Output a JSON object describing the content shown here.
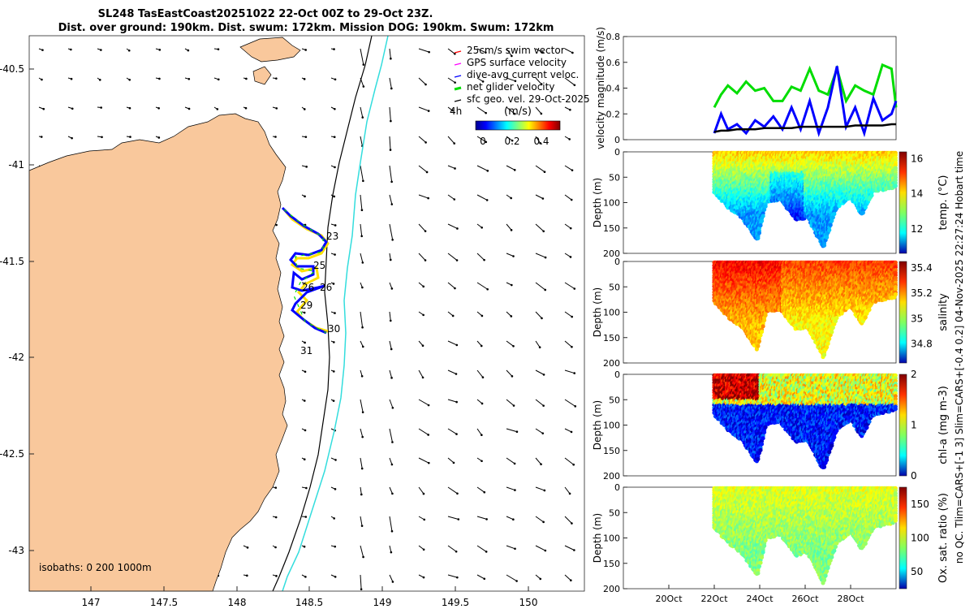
{
  "title": {
    "line1": "SL248 TasEastCoast20251022 22-Oct 00Z to 29-Oct 23Z.",
    "line2": "Dist. over ground: 190km. Dist. swum: 172km. Mission DOG: 190km. Swum: 172km"
  },
  "side_note": "no QC. Tlim=CARS+[-1 3] Slim=CARS+[-0.4 0.2] 04-Nov-2025 22:27:24 Hobart time",
  "colors": {
    "land": "#F9C89C",
    "coast": "#000000",
    "isobath_200": "#000000",
    "isobath_1000": "#33DDDD",
    "swim_vector": "#FF0000",
    "gps_velocity": "#FF00FF",
    "dive_avg": "#0000FF",
    "net_glider": "#00DD00",
    "sfc_geo": "#000000",
    "track_main": "#0000FF",
    "track_alt": "#FFE000"
  },
  "map": {
    "xticks": [
      "147",
      "147.5",
      "148",
      "148.5",
      "149",
      "149.5",
      "150"
    ],
    "yticks": [
      "-40.5",
      "-41",
      "-41.5",
      "-42",
      "-42.5",
      "-43"
    ],
    "isobaths_label": "isobaths: 0   200   1000m",
    "legend": [
      {
        "label": "25cm/s swim vector",
        "color": "#FF0000"
      },
      {
        "label": "GPS surface velocity",
        "color": "#FF00FF"
      },
      {
        "label": "dive-avg current veloc.",
        "color": "#0000FF"
      },
      {
        "label": "net glider velocity",
        "color": "#00DD00"
      },
      {
        "label": "sfc geo. vel. 29-Oct-2025",
        "color": "#000000"
      }
    ],
    "legend_4h": "4h",
    "colorbar": {
      "label": "(m/s)",
      "ticks": [
        "0",
        "0.2",
        "0.4"
      ]
    },
    "track_day_labels": [
      "23",
      "25",
      "26",
      "26",
      "29",
      "30",
      "31"
    ]
  },
  "chart_data": [
    {
      "type": "line",
      "title": "",
      "ylabel": "velocity magnitude (m/s)",
      "ylim": [
        0,
        0.8
      ],
      "yticks": [
        "0",
        "0.2",
        "0.4",
        "0.6",
        "0.8"
      ],
      "xlabel": "",
      "x_unit": "days since 18-Oct",
      "xlim": [
        0,
        12
      ],
      "x": [
        4.0,
        4.3,
        4.6,
        5.0,
        5.4,
        5.8,
        6.2,
        6.6,
        7.0,
        7.4,
        7.8,
        8.2,
        8.6,
        9.0,
        9.4,
        9.8,
        10.2,
        10.6,
        11.0,
        11.4,
        11.8,
        12.0
      ],
      "series": [
        {
          "name": "net glider velocity",
          "values": [
            0.25,
            0.35,
            0.42,
            0.36,
            0.45,
            0.38,
            0.4,
            0.3,
            0.3,
            0.41,
            0.38,
            0.55,
            0.38,
            0.35,
            0.55,
            0.3,
            0.42,
            0.38,
            0.35,
            0.58,
            0.55,
            0.25
          ]
        },
        {
          "name": "dive-avg current veloc.",
          "values": [
            0.05,
            0.2,
            0.08,
            0.12,
            0.05,
            0.15,
            0.1,
            0.18,
            0.08,
            0.25,
            0.08,
            0.3,
            0.05,
            0.25,
            0.57,
            0.1,
            0.25,
            0.05,
            0.32,
            0.15,
            0.2,
            0.3
          ]
        },
        {
          "name": "sfc geo. vel.",
          "values": [
            0.06,
            0.07,
            0.07,
            0.08,
            0.08,
            0.08,
            0.09,
            0.09,
            0.09,
            0.09,
            0.1,
            0.1,
            0.1,
            0.1,
            0.1,
            0.1,
            0.11,
            0.11,
            0.11,
            0.11,
            0.12,
            0.12
          ]
        }
      ]
    },
    {
      "type": "heatmap",
      "name": "temperature",
      "ylabel": "Depth (m)",
      "ylim": [
        200,
        0
      ],
      "yticks": [
        "0",
        "50",
        "100",
        "150",
        "200"
      ],
      "colorbar_label": "temp. (°C)",
      "clim": [
        10.6,
        16.4
      ],
      "colorbar_ticks": [
        "12",
        "14",
        "16"
      ],
      "xlim": [
        0,
        12
      ],
      "dive_depth_profile": {
        "x": [
          4.0,
          4.6,
          5.2,
          5.9,
          6.3,
          6.9,
          7.6,
          8.1,
          8.8,
          9.4,
          10.0,
          10.5,
          11.0,
          11.6,
          12.0
        ],
        "max_depth": [
          80,
          110,
          130,
          175,
          100,
          95,
          135,
          130,
          190,
          110,
          90,
          125,
          80,
          75,
          70
        ]
      },
      "surface_value": 14.5,
      "deep_value": 12.2
    },
    {
      "type": "heatmap",
      "name": "salinity",
      "ylabel": "Depth (m)",
      "ylim": [
        200,
        0
      ],
      "yticks": [
        "0",
        "50",
        "100",
        "150",
        "200"
      ],
      "colorbar_label": "salinity",
      "clim": [
        34.65,
        35.45
      ],
      "colorbar_ticks": [
        "34.8",
        "35",
        "35.2",
        "35.4"
      ],
      "xlim": [
        0,
        12
      ],
      "surface_value": 35.3,
      "deep_value": 35.15
    },
    {
      "type": "heatmap",
      "name": "chlorophyll",
      "ylabel": "Depth (m)",
      "ylim": [
        200,
        0
      ],
      "yticks": [
        "0",
        "50",
        "100",
        "150",
        "200"
      ],
      "colorbar_label": "chl-a (mg m-3)",
      "clim": [
        0,
        2
      ],
      "colorbar_ticks": [
        "0",
        "1",
        "2"
      ],
      "xlim": [
        0,
        12
      ],
      "surface_value": 1.2,
      "deep_value": 0.2
    },
    {
      "type": "heatmap",
      "name": "oxygen saturation",
      "ylabel": "Depth (m)",
      "ylim": [
        200,
        0
      ],
      "yticks": [
        "0",
        "50",
        "100",
        "150",
        "200"
      ],
      "colorbar_label": "Ox. sat. ratio (%)",
      "clim": [
        25,
        175
      ],
      "colorbar_ticks": [
        "50",
        "100",
        "150"
      ],
      "xlim": [
        0,
        12
      ],
      "xticks": [
        {
          "x": 2,
          "label": "20Oct"
        },
        {
          "x": 4,
          "label": "22Oct"
        },
        {
          "x": 6,
          "label": "24Oct"
        },
        {
          "x": 8,
          "label": "26Oct"
        },
        {
          "x": 10,
          "label": "28Oct"
        }
      ],
      "surface_value": 115,
      "deep_value": 100
    }
  ]
}
